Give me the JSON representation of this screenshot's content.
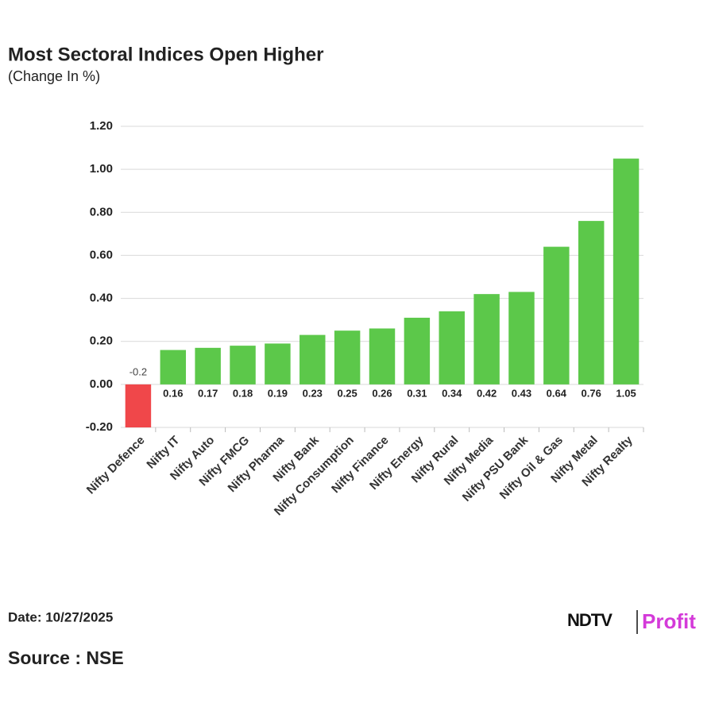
{
  "chart_data": {
    "type": "bar",
    "title": "Most Sectoral Indices Open Higher",
    "subtitle": "(Change In %)",
    "categories": [
      "Nifty Defence",
      "Nifty IT",
      "Nifty Auto",
      "Nifty FMCG",
      "Nifty Pharma",
      "Nifty Bank",
      "Nifty Consumption",
      "Nifty Finance",
      "Nifty Energy",
      "Nifty Rural",
      "Nifty Media",
      "Nifty PSU Bank",
      "Nifty Oil & Gas",
      "Nifty Metal",
      "Nifty Realty"
    ],
    "values": [
      -0.2,
      0.16,
      0.17,
      0.18,
      0.19,
      0.23,
      0.25,
      0.26,
      0.31,
      0.34,
      0.42,
      0.43,
      0.64,
      0.76,
      1.05
    ],
    "color": "#5cc84a",
    "negative_color": "#f0474a",
    "ylim": [
      -0.2,
      1.2
    ],
    "yticks": [
      {
        "value": -0.2,
        "label": "-0.20"
      },
      {
        "value": 0,
        "label": "0.00"
      },
      {
        "value": 0.2,
        "label": "0.20"
      },
      {
        "value": 0.4,
        "label": "0.40"
      },
      {
        "value": 0.6,
        "label": "0.60"
      },
      {
        "value": 0.8,
        "label": "0.80"
      },
      {
        "value": 1.0,
        "label": "1.00"
      },
      {
        "value": 1.2,
        "label": "1.20"
      }
    ],
    "grid": true
  },
  "footer": {
    "date": "Date: 10/27/2025",
    "source": "Source : NSE",
    "logo_left": "NDTV",
    "logo_right": "Profit"
  }
}
